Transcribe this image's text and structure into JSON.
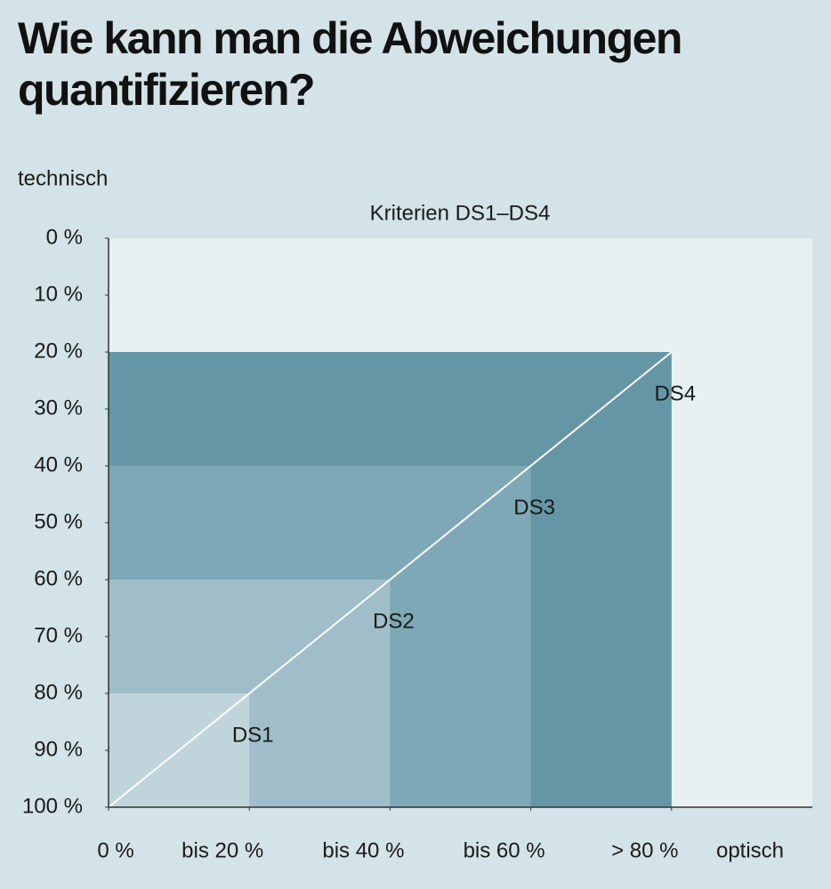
{
  "chart_data": {
    "type": "nested-area",
    "title": "Wie kann man die Abweichungen quantifizieren?",
    "subtitle": "Kriterien DS1–DS4",
    "y_label": "technisch",
    "x_label": "optisch",
    "xlim": [
      0,
      100
    ],
    "ylim": [
      0,
      100
    ],
    "y_inverted": true,
    "xticks": [
      {
        "value": 0,
        "label": "0 %"
      },
      {
        "value": 20,
        "label": "bis 20 %"
      },
      {
        "value": 40,
        "label": "bis 40 %"
      },
      {
        "value": 60,
        "label": "bis 60 %"
      },
      {
        "value": 80,
        "label": "> 80 %"
      }
    ],
    "yticks": [
      {
        "value": 0,
        "label": "0 %"
      },
      {
        "value": 10,
        "label": "10 %"
      },
      {
        "value": 20,
        "label": "20 %"
      },
      {
        "value": 30,
        "label": "30 %"
      },
      {
        "value": 40,
        "label": "40 %"
      },
      {
        "value": 50,
        "label": "50 %"
      },
      {
        "value": 60,
        "label": "60 %"
      },
      {
        "value": 70,
        "label": "70 %"
      },
      {
        "value": 80,
        "label": "80 %"
      },
      {
        "value": 90,
        "label": "90 %"
      },
      {
        "value": 100,
        "label": "100 %"
      }
    ],
    "series": [
      {
        "name": "DS1",
        "color": "#c0d4db",
        "x": 20,
        "y": 80
      },
      {
        "name": "DS2",
        "color": "#9fbec9",
        "x": 40,
        "y": 60
      },
      {
        "name": "DS3",
        "color": "#7ea8b5",
        "x": 60,
        "y": 40
      },
      {
        "name": "DS4",
        "color": "#6596a5",
        "x": 80,
        "y": 20
      }
    ]
  }
}
